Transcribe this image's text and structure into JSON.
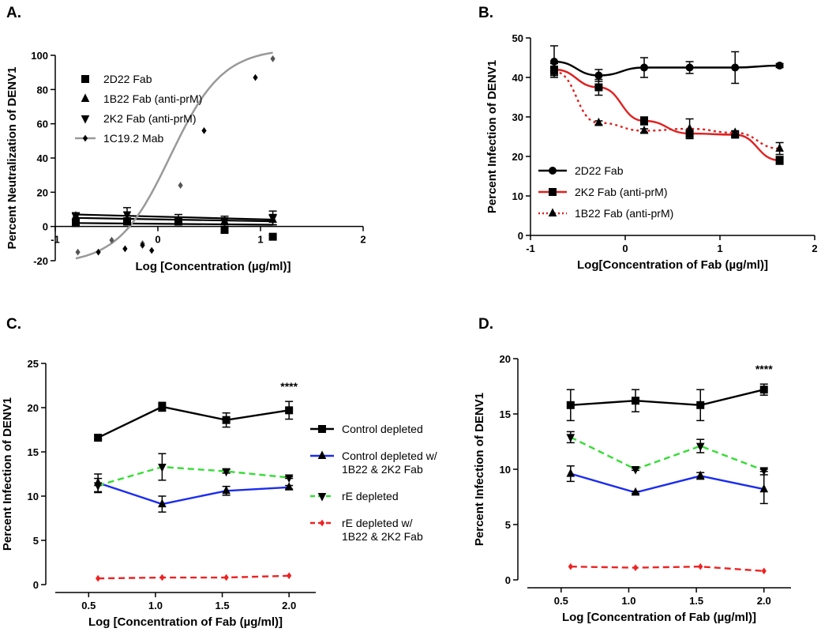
{
  "chart_data": [
    {
      "panel": "A.",
      "type": "line",
      "xlabel": "Log [Concentration (µg/ml)]",
      "ylabel": "Percent Neutralization of DENV1",
      "xlim": [
        -1,
        2
      ],
      "ylim": [
        -20,
        100
      ],
      "xticks": [
        -1,
        0,
        1,
        2
      ],
      "yticks": [
        -20,
        0,
        20,
        40,
        60,
        80,
        100
      ],
      "legend": "top-left",
      "series": [
        {
          "name": "2D22 Fab",
          "marker": "square",
          "color": "#000000",
          "dash": "",
          "x": [
            -0.8,
            -0.3,
            0.2,
            0.65,
            1.12
          ],
          "y": [
            2,
            3,
            3,
            -2,
            -6
          ],
          "err": [
            2,
            2,
            2,
            2,
            1
          ]
        },
        {
          "name": "1B22 Fab (anti-prM)",
          "marker": "triangle-up",
          "color": "#000000",
          "dash": "",
          "x": [
            -0.8,
            -0.3,
            0.2,
            0.65,
            1.12
          ],
          "y": [
            6,
            3,
            3,
            3,
            4
          ],
          "err": [
            2,
            2,
            2,
            2,
            3
          ]
        },
        {
          "name": "2K2 Fab (anti-prM)",
          "marker": "triangle-down",
          "color": "#000000",
          "dash": "",
          "x": [
            -0.8,
            -0.3,
            0.2,
            0.65,
            1.12
          ],
          "y": [
            6,
            7,
            4,
            3,
            5
          ],
          "err": [
            2,
            4,
            3,
            3,
            4
          ]
        },
        {
          "name": "1C19.2 Mab",
          "marker": "diamond",
          "color": "#000000",
          "dash": "",
          "x": [
            -0.58,
            -0.32,
            -0.15,
            -0.06,
            0.45,
            0.95
          ],
          "y": [
            -15,
            -13,
            -11,
            -14,
            56,
            87
          ],
          "err": []
        }
      ],
      "fit_curve": {
        "name": "1C19.2 Mab",
        "color": "#999999",
        "bottom": -22,
        "top": 104,
        "logEC50": 0.12,
        "hill": 1.7,
        "x_range": [
          -0.8,
          1.12
        ]
      },
      "extra_points": {
        "x": [
          -0.78,
          -0.45,
          -0.15,
          0.22,
          1.12
        ],
        "y": [
          -15,
          -8,
          -10,
          24,
          98
        ]
      },
      "fab_fits": [
        {
          "x": [
            -0.8,
            1.12
          ],
          "y": [
            2,
            1
          ]
        },
        {
          "x": [
            -0.8,
            1.12
          ],
          "y": [
            7,
            4
          ]
        },
        {
          "x": [
            -0.8,
            1.12
          ],
          "y": [
            5,
            3
          ]
        }
      ]
    },
    {
      "panel": "B.",
      "type": "line",
      "xlabel": "Log[Concentration of Fab (µg/ml)]",
      "ylabel": "Percent Infection of DENV1",
      "xlim": [
        -1,
        2
      ],
      "ylim": [
        0,
        50
      ],
      "xticks": [
        -1,
        0,
        1,
        2
      ],
      "yticks": [
        0,
        10,
        20,
        30,
        40,
        50
      ],
      "legend": "bottom-left",
      "series": [
        {
          "name": "2D22 Fab",
          "marker": "circle",
          "color": "#000000",
          "dash": "",
          "x": [
            -0.75,
            -0.28,
            0.2,
            0.68,
            1.16,
            1.63
          ],
          "y": [
            44,
            40.5,
            42.5,
            42.5,
            42.5,
            43
          ],
          "err": [
            4,
            1.5,
            2.5,
            1.5,
            4,
            0.5
          ]
        },
        {
          "name": "2K2 Fab (anti-prM)",
          "marker": "square",
          "color": "#e02020",
          "dash": "",
          "x": [
            -0.75,
            -0.28,
            0.2,
            0.68,
            1.16,
            1.63
          ],
          "y": [
            42,
            37.5,
            29,
            25.8,
            25.5,
            19
          ],
          "err": [
            1.5,
            2,
            1,
            1,
            0.5,
            1
          ]
        },
        {
          "name": "1B22 Fab (anti-prM)",
          "marker": "triangle-up",
          "color": "#e02020",
          "dash": "3,4",
          "x": [
            -0.75,
            -0.28,
            0.2,
            0.68,
            1.16,
            1.63
          ],
          "y": [
            41.5,
            28.5,
            26.5,
            27,
            26,
            22
          ],
          "err": [
            1,
            0.5,
            0.5,
            2.5,
            0.5,
            1.5
          ]
        }
      ]
    },
    {
      "panel": "C.",
      "type": "line",
      "xlabel": "Log [Concentration of Fab (µg/ml)]",
      "ylabel": "Percent Infection of DENV1",
      "xlim": [
        0.25,
        2.2
      ],
      "ylim": [
        0,
        25
      ],
      "xticks": [
        0.5,
        1.0,
        1.5,
        2.0
      ],
      "xticklabels": [
        "0.5",
        "1.0",
        "1.5",
        "2.0"
      ],
      "yticks": [
        0,
        5,
        10,
        15,
        20,
        25
      ],
      "legend": "right",
      "annotation": "****",
      "series": [
        {
          "name": "Control depleted",
          "marker": "square",
          "color": "#000000",
          "dash": "",
          "x": [
            0.57,
            1.05,
            1.53,
            2.0
          ],
          "y": [
            16.6,
            20.1,
            18.6,
            19.7
          ],
          "err": [
            0.2,
            0.5,
            0.8,
            1.0
          ]
        },
        {
          "name": "Control depleted w/\n1B22 & 2K2 Fab",
          "marker": "triangle-up",
          "color": "#1b2cf0",
          "dash": "",
          "x": [
            0.57,
            1.05,
            1.53,
            2.0
          ],
          "y": [
            11.5,
            9.1,
            10.6,
            11.0
          ],
          "err": [
            1.0,
            0.9,
            0.5,
            0.2
          ]
        },
        {
          "name": "rE depleted",
          "marker": "triangle-down",
          "color": "#33dd33",
          "dash": "8,5",
          "x": [
            0.57,
            1.05,
            1.53,
            2.0
          ],
          "y": [
            11.2,
            13.3,
            12.8,
            12.1
          ],
          "err": [
            0.8,
            1.5,
            0.2,
            0.1
          ]
        },
        {
          "name": "rE depleted w/\n1B22 & 2K2 Fab",
          "marker": "diamond",
          "color": "#ee2222",
          "dash": "8,5",
          "x": [
            0.57,
            1.05,
            1.53,
            2.0
          ],
          "y": [
            0.7,
            0.8,
            0.8,
            1.0
          ],
          "err": []
        }
      ]
    },
    {
      "panel": "D.",
      "type": "line",
      "xlabel": "Log [Concentration of Fab (µg/ml)]",
      "ylabel": "Percent Infection of DENV1",
      "xlim": [
        0.25,
        2.2
      ],
      "ylim": [
        0,
        20
      ],
      "xticks": [
        0.5,
        1.0,
        1.5,
        2.0
      ],
      "xticklabels": [
        "0.5",
        "1.0",
        "1.5",
        "2.0"
      ],
      "yticks": [
        0,
        5,
        10,
        15,
        20
      ],
      "legend": "none",
      "annotation": "****",
      "series": [
        {
          "name": "Control depleted",
          "marker": "square",
          "color": "#000000",
          "dash": "",
          "x": [
            0.57,
            1.05,
            1.53,
            2.0
          ],
          "y": [
            15.8,
            16.2,
            15.8,
            17.2
          ],
          "err": [
            1.4,
            1.0,
            1.4,
            0.5
          ]
        },
        {
          "name": "Control depleted w/ 1B22 & 2K2 Fab",
          "marker": "triangle-up",
          "color": "#1b2cf0",
          "dash": "",
          "x": [
            0.57,
            1.05,
            1.53,
            2.0
          ],
          "y": [
            9.6,
            7.9,
            9.4,
            8.2
          ],
          "err": [
            0.7,
            0.1,
            0.3,
            1.3
          ]
        },
        {
          "name": "rE depleted",
          "marker": "triangle-down",
          "color": "#33dd33",
          "dash": "8,5",
          "x": [
            0.57,
            1.05,
            1.53,
            2.0
          ],
          "y": [
            12.9,
            10.0,
            12.1,
            9.9
          ],
          "err": [
            0.5,
            0.1,
            0.6,
            0.1
          ]
        },
        {
          "name": "rE depleted w/ 1B22 & 2K2 Fab",
          "marker": "diamond",
          "color": "#ee2222",
          "dash": "8,5",
          "x": [
            0.57,
            1.05,
            1.53,
            2.0
          ],
          "y": [
            1.2,
            1.1,
            1.2,
            0.8
          ],
          "err": []
        }
      ]
    }
  ]
}
